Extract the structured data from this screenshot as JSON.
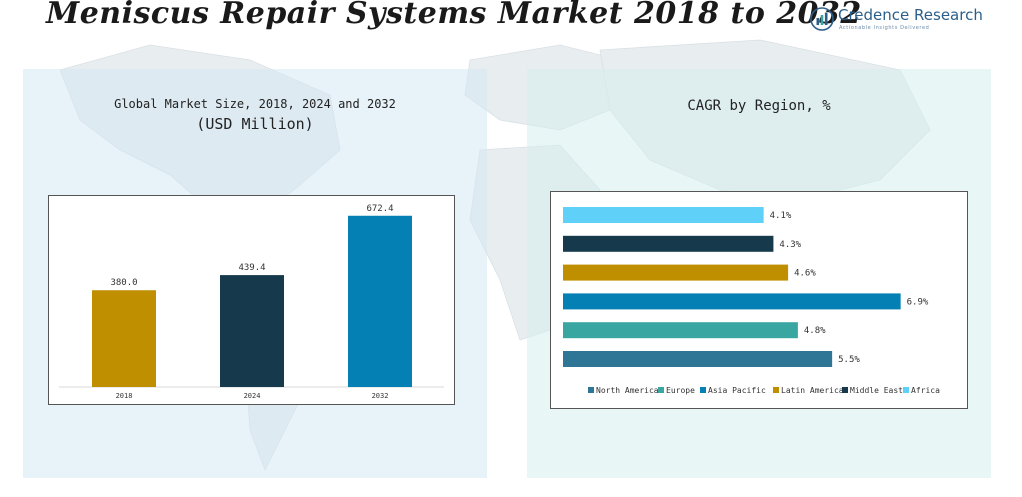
{
  "header": {
    "title": "Meniscus Repair Systems Market 2018 to 2032",
    "logo_name": "Credence Research",
    "logo_tagline": "Actionable Insights Delivered"
  },
  "left_panel": {
    "title_line1": "Global Market Size, 2018, 2024 and 2032",
    "title_line2": "(USD Million)"
  },
  "right_panel": {
    "title": "CAGR by Region, %"
  },
  "chart_data": [
    {
      "type": "bar",
      "title": "Global Market Size, 2018, 2024 and 2032 (USD Million)",
      "categories": [
        "2018",
        "2024",
        "2032"
      ],
      "values": [
        380.0,
        439.4,
        672.4
      ],
      "value_labels": [
        "380.0",
        "439.4",
        "672.4"
      ],
      "colors": [
        "#c08f00",
        "#163a4c",
        "#0580b4"
      ],
      "ylim": [
        0,
        750
      ],
      "grid": false
    },
    {
      "type": "bar",
      "orientation": "horizontal",
      "title": "CAGR by Region, %",
      "series": [
        {
          "name": "North America",
          "value": 5.5,
          "label": "5.5%",
          "color": "#2e7596"
        },
        {
          "name": "Europe",
          "value": 4.8,
          "label": "4.8%",
          "color": "#3aa6a2"
        },
        {
          "name": "Asia Pacific",
          "value": 6.9,
          "label": "6.9%",
          "color": "#0580b4"
        },
        {
          "name": "Latin America",
          "value": 4.6,
          "label": "4.6%",
          "color": "#c08f00"
        },
        {
          "name": "Middle East",
          "value": 4.3,
          "label": "4.3%",
          "color": "#163a4c"
        },
        {
          "name": "Africa",
          "value": 4.1,
          "label": "4.1%",
          "color": "#5fd0f7"
        }
      ],
      "xlim": [
        0,
        7.5
      ],
      "legend_position": "bottom",
      "grid": false
    }
  ]
}
